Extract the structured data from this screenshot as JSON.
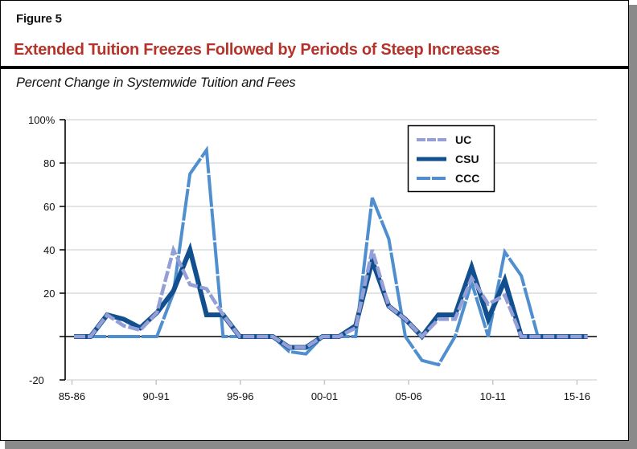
{
  "header": {
    "figure_label": "Figure 5",
    "title": "Extended Tuition Freezes Followed by Periods of Steep Increases"
  },
  "subtitle": "Percent Change in Systemwide Tuition and Fees",
  "colors": {
    "title_red": "#b5332b",
    "UC": "#939fd6",
    "CSU": "#124f8e",
    "CCC": "#4f8fcf",
    "gridline": "#dcdcdc",
    "axis": "#000000"
  },
  "chart_data": {
    "type": "line",
    "title": "Extended Tuition Freezes Followed by Periods of Steep Increases",
    "subtitle": "Percent Change in Systemwide Tuition and Fees",
    "xlabel": "",
    "ylabel": "",
    "x": [
      "85-86",
      "86-87",
      "87-88",
      "88-89",
      "89-90",
      "90-91",
      "91-92",
      "92-93",
      "93-94",
      "94-95",
      "95-96",
      "96-97",
      "97-98",
      "98-99",
      "99-00",
      "00-01",
      "01-02",
      "02-03",
      "03-04",
      "04-05",
      "05-06",
      "06-07",
      "07-08",
      "08-09",
      "09-10",
      "10-11",
      "11-12",
      "12-13",
      "13-14",
      "14-15",
      "15-16",
      "16-17"
    ],
    "x_tick_labels": [
      "85-86",
      "90-91",
      "95-96",
      "00-01",
      "05-06",
      "10-11",
      "15-16"
    ],
    "y_tick_labels": [
      "100%",
      "80",
      "60",
      "40",
      "20",
      "",
      "-20"
    ],
    "ylim": [
      -20,
      100
    ],
    "yticks": [
      -20,
      0,
      20,
      40,
      60,
      80,
      100
    ],
    "grid": true,
    "legend_position": "upper center-right",
    "series": [
      {
        "name": "UC",
        "style": "dashed",
        "values": [
          0,
          0,
          10,
          5,
          3,
          11,
          40,
          24,
          22,
          10,
          0,
          0,
          0,
          -5,
          -5,
          0,
          0,
          4,
          40,
          14,
          8,
          0,
          8,
          8,
          27,
          15,
          19,
          0,
          0,
          0,
          0,
          0
        ]
      },
      {
        "name": "CSU",
        "style": "solid",
        "values": [
          0,
          0,
          10,
          8,
          4,
          11,
          21,
          40,
          10,
          10,
          0,
          0,
          0,
          -5,
          -5,
          0,
          0,
          5,
          35,
          14,
          8,
          0,
          10,
          10,
          32,
          8,
          26,
          0,
          0,
          0,
          0,
          0
        ]
      },
      {
        "name": "CCC",
        "style": "long-dashed",
        "values": [
          0,
          0,
          0,
          0,
          0,
          0,
          20,
          75,
          86,
          0,
          0,
          0,
          0,
          -7,
          -8,
          0,
          0,
          0,
          64,
          45,
          0,
          -11,
          -13,
          0,
          25,
          0,
          39,
          28,
          0,
          0,
          0,
          0
        ]
      }
    ]
  },
  "legend": {
    "items": [
      {
        "label": "UC"
      },
      {
        "label": "CSU"
      },
      {
        "label": "CCC"
      }
    ]
  }
}
